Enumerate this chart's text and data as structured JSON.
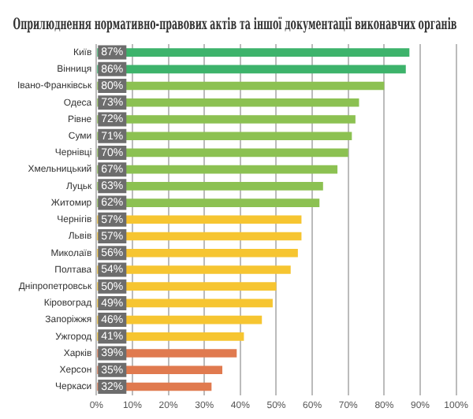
{
  "chart_data": {
    "type": "bar",
    "orientation": "horizontal",
    "title": "Оприлюднення нормативно-правових актів та іншої документації виконавчих органів",
    "categories": [
      "Київ",
      "Вінниця",
      "Івано-Франківськ",
      "Одеса",
      "Рівне",
      "Суми",
      "Чернівці",
      "Хмельницький",
      "Луцьк",
      "Житомир",
      "Чернігів",
      "Львів",
      "Миколаїв",
      "Полтава",
      "Дніпропетровськ",
      "Кіровоград",
      "Запоріжжя",
      "Ужгород",
      "Харків",
      "Херсон",
      "Черкаси"
    ],
    "values": [
      87,
      86,
      80,
      73,
      72,
      71,
      70,
      67,
      63,
      62,
      57,
      57,
      56,
      54,
      50,
      49,
      46,
      41,
      39,
      35,
      32
    ],
    "value_labels": [
      "87%",
      "86%",
      "80%",
      "73%",
      "72%",
      "71%",
      "70%",
      "67%",
      "63%",
      "62%",
      "57%",
      "57%",
      "56%",
      "54%",
      "50%",
      "49%",
      "46%",
      "41%",
      "39%",
      "35%",
      "32%"
    ],
    "colors": [
      "#3db36b",
      "#3db36b",
      "#8cc152",
      "#8cc152",
      "#8cc152",
      "#8cc152",
      "#8cc152",
      "#8cc152",
      "#8cc152",
      "#8cc152",
      "#f6c531",
      "#f6c531",
      "#f6c531",
      "#f6c531",
      "#f6c531",
      "#f6c531",
      "#f6c531",
      "#f6c531",
      "#e07a4f",
      "#e07a4f",
      "#e07a4f"
    ],
    "xlim": [
      0,
      100
    ],
    "xticks": [
      {
        "value": 0,
        "label": "0%"
      },
      {
        "value": 10,
        "label": "10%"
      },
      {
        "value": 20,
        "label": "20%"
      },
      {
        "value": 30,
        "label": "30%"
      },
      {
        "value": 40,
        "label": "40%"
      },
      {
        "value": 50,
        "label": "50%"
      },
      {
        "value": 60,
        "label": "60%"
      },
      {
        "value": 70,
        "label": "70%"
      },
      {
        "value": 80,
        "label": "80%"
      },
      {
        "value": 90,
        "label": "90%"
      },
      {
        "value": 100,
        "label": "100%"
      }
    ],
    "grid": "x",
    "legend": false
  }
}
